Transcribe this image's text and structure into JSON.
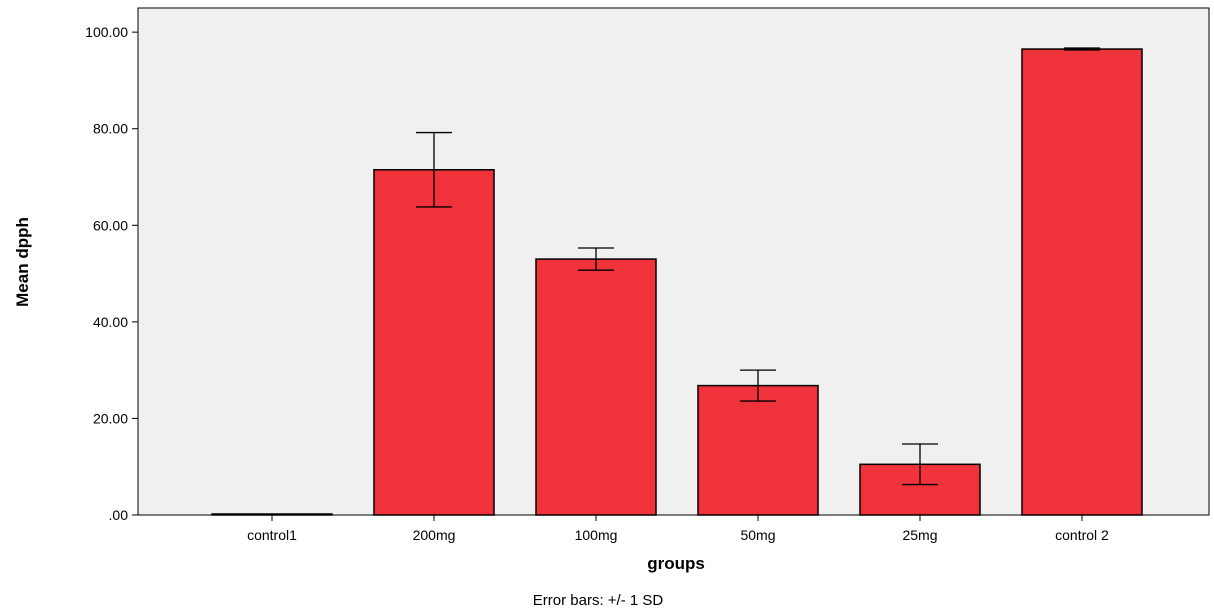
{
  "chart_data": {
    "type": "bar",
    "title": "",
    "xlabel": "groups",
    "ylabel": "Mean dpph",
    "footnote": "Error bars: +/- 1 SD",
    "categories": [
      "control1",
      "200mg",
      "100mg",
      "50mg",
      "25mg",
      "control 2"
    ],
    "values": [
      0.0,
      71.5,
      53.0,
      26.8,
      10.5,
      96.5
    ],
    "error_sd": [
      0.0,
      7.7,
      2.3,
      3.2,
      4.2,
      0.2
    ],
    "ylim": [
      0,
      105
    ],
    "yticks": [
      ".00",
      "20.00",
      "40.00",
      "60.00",
      "80.00",
      "100.00"
    ],
    "ytick_values": [
      0,
      20,
      40,
      60,
      80,
      100
    ],
    "grid": false,
    "legend": "none",
    "colors": {
      "bar_fill": "#f0323a",
      "bar_stroke": "#000000",
      "plot_background": "#f0f0f0",
      "error_bar": "#000000"
    }
  }
}
